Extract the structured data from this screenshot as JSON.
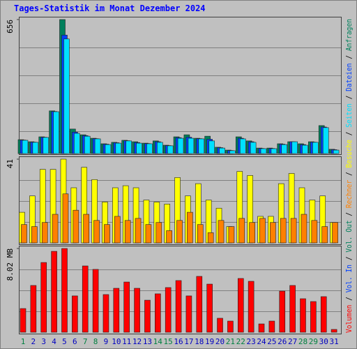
{
  "title": "Tages-Statistik im Monat Dezember 2024",
  "categories": [
    "1",
    "2",
    "3",
    "4",
    "5",
    "6",
    "7",
    "8",
    "9",
    "10",
    "11",
    "12",
    "13",
    "14",
    "15",
    "16",
    "17",
    "18",
    "19",
    "20",
    "21",
    "22",
    "23",
    "24",
    "25",
    "26",
    "27",
    "28",
    "29",
    "30",
    "31"
  ],
  "category_colors": [
    "#008040",
    "#0000c0",
    "#0000c0",
    "#0000c0",
    "#0000c0",
    "#0000c0",
    "#008040",
    "#008040",
    "#0000c0",
    "#0000c0",
    "#0000c0",
    "#0000c0",
    "#0000c0",
    "#008040",
    "#008040",
    "#0000c0",
    "#0000c0",
    "#0000c0",
    "#0000c0",
    "#0000c0",
    "#008040",
    "#008040",
    "#0000c0",
    "#0000c0",
    "#0000c0",
    "#0000c0",
    "#0000c0",
    "#008040",
    "#008040",
    "#0000c0",
    "#0000c0"
  ],
  "chart_data": [
    {
      "type": "bar",
      "ylim": [
        0,
        656
      ],
      "yticks": [
        656
      ],
      "series": [
        {
          "name": "Seiten",
          "color": "#00e0ff",
          "values": [
            65,
            55,
            79,
            205,
            561,
            99,
            85,
            72,
            44,
            51,
            62,
            51,
            48,
            55,
            38,
            75,
            75,
            72,
            62,
            27,
            14,
            72,
            55,
            24,
            24,
            44,
            58,
            41,
            55,
            127,
            17
          ]
        },
        {
          "name": "Dateien",
          "color": "#0040ff",
          "values": [
            66,
            56,
            80,
            206,
            580,
            105,
            88,
            73,
            46,
            53,
            63,
            54,
            49,
            58,
            39,
            78,
            80,
            73,
            70,
            29,
            15,
            75,
            58,
            25,
            25,
            46,
            58,
            44,
            56,
            130,
            19
          ]
        },
        {
          "name": "Anfragen",
          "color": "#00805c",
          "values": [
            68,
            58,
            82,
            209,
            656,
            120,
            92,
            75,
            48,
            55,
            65,
            58,
            51,
            62,
            41,
            82,
            92,
            75,
            85,
            31,
            17,
            82,
            62,
            27,
            27,
            48,
            58,
            48,
            58,
            137,
            21
          ]
        }
      ]
    },
    {
      "type": "bar",
      "ylim": [
        0,
        41
      ],
      "yticks": [
        41
      ],
      "series": [
        {
          "name": "Rechner",
          "color": "#ff8000",
          "values": [
            9,
            8,
            10,
            14,
            24,
            16,
            14,
            11,
            9,
            13,
            11,
            12,
            9,
            10,
            6,
            11,
            15,
            9,
            5,
            11,
            8,
            12,
            10,
            12,
            10,
            12,
            12,
            14,
            11,
            8,
            10
          ]
        },
        {
          "name": "Besuche",
          "color": "#ffff00",
          "values": [
            15,
            23,
            36,
            36,
            41,
            27,
            37,
            31,
            20,
            27,
            28,
            27,
            21,
            20,
            19,
            32,
            23,
            29,
            21,
            17,
            8,
            35,
            33,
            13,
            13,
            29,
            34,
            27,
            21,
            23,
            10
          ]
        }
      ]
    },
    {
      "type": "bar",
      "ylim": [
        0,
        8.02
      ],
      "yticks": [
        {
          "value": 8.02,
          "label": "8.02 MB"
        }
      ],
      "series": [
        {
          "name": "Volumen",
          "color": "#ff0000",
          "values": [
            2.27,
            4.48,
            6.68,
            7.75,
            8.02,
            3.48,
            6.35,
            6.02,
            3.61,
            4.21,
            4.81,
            4.21,
            3.07,
            3.68,
            4.28,
            4.95,
            3.48,
            5.35,
            4.61,
            1.34,
            1.07,
            5.15,
            4.88,
            0.8,
            1.07,
            3.94,
            4.48,
            3.21,
            2.94,
            3.41,
            0.27
          ]
        },
        {
          "name": "Vol. In",
          "color": "#0040ff",
          "values": [
            null,
            null,
            null,
            null,
            null,
            null,
            null,
            null,
            null,
            null,
            null,
            null,
            null,
            null,
            null,
            null,
            null,
            null,
            null,
            null,
            null,
            null,
            null,
            null,
            null,
            null,
            null,
            null,
            null,
            null,
            null
          ]
        },
        {
          "name": "Vol. Out",
          "color": "#00805c",
          "values": [
            null,
            null,
            null,
            null,
            null,
            null,
            null,
            null,
            null,
            null,
            null,
            null,
            null,
            null,
            null,
            null,
            null,
            null,
            null,
            null,
            null,
            null,
            null,
            null,
            null,
            null,
            null,
            null,
            null,
            null,
            null
          ]
        }
      ]
    }
  ]
}
